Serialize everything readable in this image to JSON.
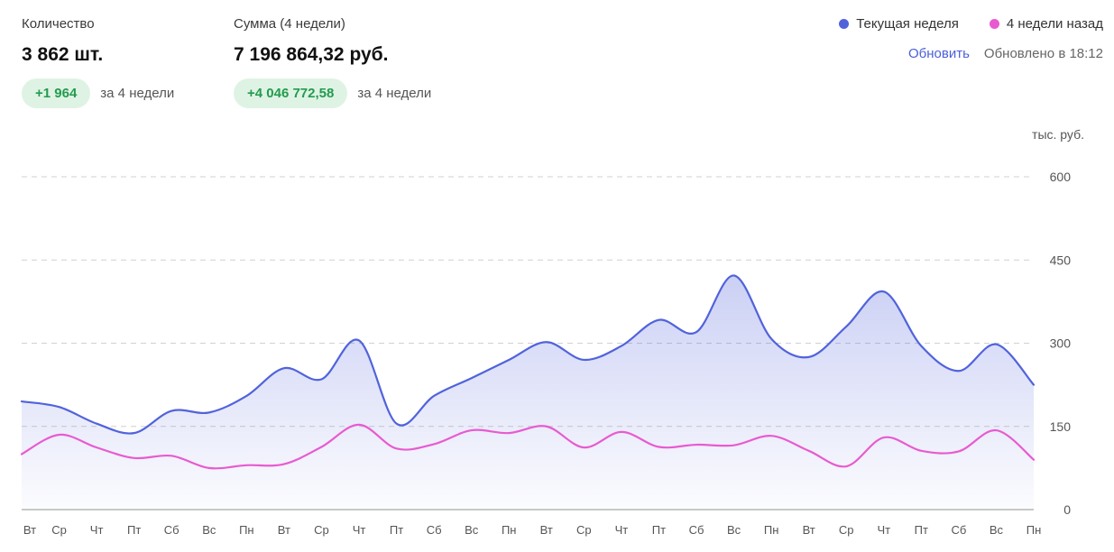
{
  "stats": {
    "quantity": {
      "label": "Количество",
      "value": "3 862 шт.",
      "delta": "+1 964",
      "period": "за 4 недели"
    },
    "sum": {
      "label": "Сумма (4 недели)",
      "value": "7 196 864,32 руб.",
      "delta": "+4 046 772,58",
      "period": "за 4 недели"
    }
  },
  "legend": {
    "current": {
      "label": "Текущая неделя",
      "color": "#5163db"
    },
    "past": {
      "label": "4 недели назад",
      "color": "#e85bd0"
    }
  },
  "actions": {
    "refresh_label": "Обновить",
    "updated_label": "Обновлено в 18:12"
  },
  "chart_data": {
    "type": "area",
    "y_unit_label": "тыс. руб.",
    "ylim": [
      0,
      600
    ],
    "y_ticks": [
      "0",
      "150",
      "300",
      "450",
      "600"
    ],
    "grid": true,
    "legend_placement": "top-right",
    "x": [
      "Вт",
      "Ср",
      "Чт",
      "Пт",
      "Сб",
      "Вс",
      "Пн",
      "Вт",
      "Ср",
      "Чт",
      "Пт",
      "Сб",
      "Вс",
      "Пн",
      "Вт",
      "Ср",
      "Чт",
      "Пт",
      "Сб",
      "Вс",
      "Пн",
      "Вт",
      "Ср",
      "Чт",
      "Пт",
      "Сб",
      "Вс",
      "Пн"
    ],
    "series": [
      {
        "name": "Текущая неделя",
        "color": "#5163db",
        "values": [
          195,
          185,
          155,
          138,
          178,
          175,
          205,
          255,
          235,
          305,
          155,
          205,
          237,
          270,
          302,
          270,
          295,
          342,
          320,
          422,
          308,
          275,
          330,
          393,
          295,
          250,
          298,
          225
        ]
      },
      {
        "name": "4 недели назад",
        "color": "#e85bd0",
        "values": [
          100,
          135,
          112,
          93,
          97,
          75,
          80,
          82,
          113,
          153,
          110,
          118,
          143,
          138,
          150,
          112,
          140,
          113,
          117,
          116,
          133,
          106,
          78,
          130,
          106,
          105,
          143,
          90
        ]
      }
    ]
  }
}
